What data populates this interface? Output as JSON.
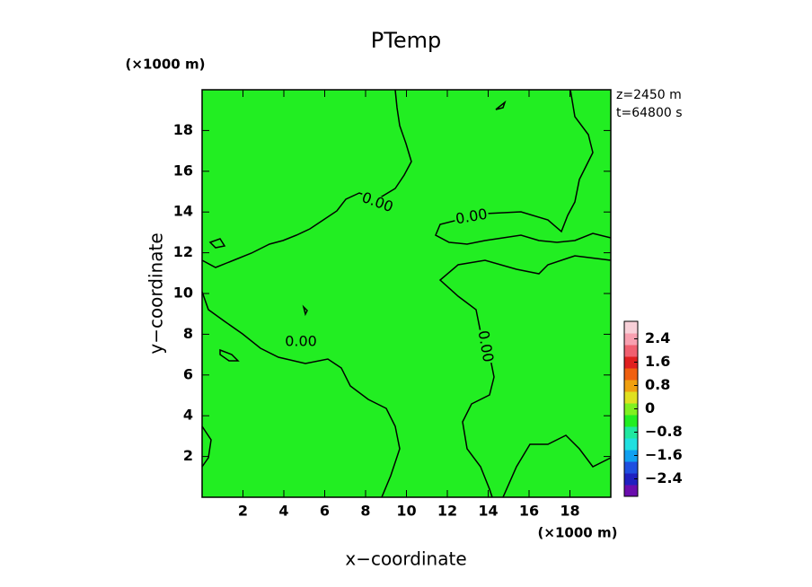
{
  "chart_data": {
    "type": "contour",
    "title": "PTemp",
    "x_label": "x−coordinate",
    "y_label": "y−coordinate",
    "x_unit": "(×1000 m)",
    "y_unit": "(×1000 m)",
    "annotations": [
      "z=2450 m",
      "t=64800 s"
    ],
    "xlim": [
      0,
      20
    ],
    "ylim": [
      0,
      20
    ],
    "xticks": [
      2,
      4,
      6,
      8,
      10,
      12,
      14,
      16,
      18
    ],
    "yticks": [
      2,
      4,
      6,
      8,
      10,
      12,
      14,
      16,
      18
    ],
    "fill_color": "#22ee22",
    "line_color": "#000000",
    "contour_level": 0,
    "contour_labels": [
      "0.00",
      "0.00",
      "0.00",
      "0.00"
    ],
    "colorbar": {
      "lim": [
        -3,
        3
      ],
      "colors": [
        "#6a0dad",
        "#2020c0",
        "#1f4fe0",
        "#10a0f0",
        "#20e0e0",
        "#20e8a0",
        "#22ee22",
        "#80f020",
        "#e0e020",
        "#f0a010",
        "#f06010",
        "#e02020",
        "#f06070",
        "#f8a0b0",
        "#f8d0d8"
      ],
      "ticks": [
        2.4,
        1.6,
        0.8,
        0,
        {
          "value": -0.8,
          "label": "−0.8"
        },
        {
          "value": -1.6,
          "label": "−1.6"
        },
        {
          "value": -2.4,
          "label": "−2.4"
        }
      ]
    }
  }
}
